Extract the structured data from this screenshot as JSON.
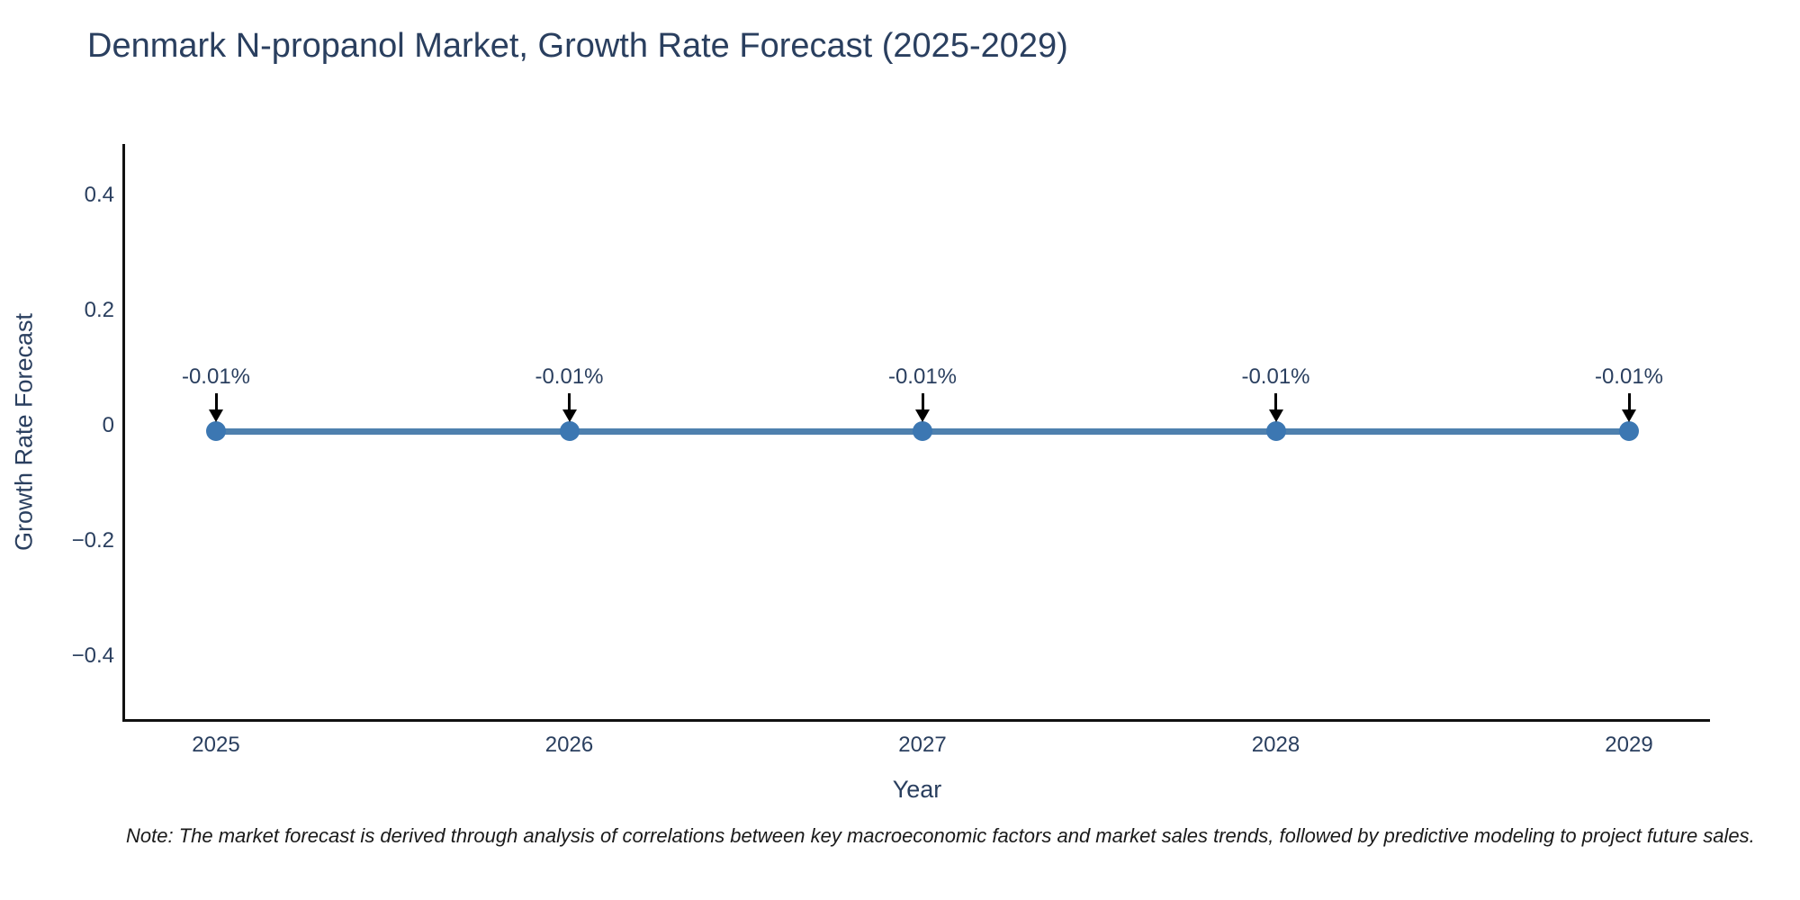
{
  "title": "Denmark N-propanol Market, Growth Rate Forecast (2025-2029)",
  "note": "Note: The market forecast is derived through analysis of correlations between key macroeconomic factors and market sales trends, followed by predictive modeling to project future sales.",
  "colors": {
    "line": "#4e80ae",
    "marker": "#3c77b2",
    "text": "#2a3f5f",
    "axis": "#111111",
    "arrow": "#000000"
  },
  "chart_data": {
    "type": "line",
    "title": "Denmark N-propanol Market, Growth Rate Forecast (2025-2029)",
    "xlabel": "Year",
    "ylabel": "Growth Rate Forecast",
    "categories": [
      "2025",
      "2026",
      "2027",
      "2028",
      "2029"
    ],
    "values": [
      -0.01,
      -0.01,
      -0.01,
      -0.01,
      -0.01
    ],
    "point_labels": [
      "-0.01%",
      "-0.01%",
      "-0.01%",
      "-0.01%",
      "-0.01%"
    ],
    "y_ticks": [
      "0.4",
      "0.2",
      "0",
      "−0.2",
      "−0.4"
    ],
    "y_tick_values": [
      0.4,
      0.2,
      0,
      -0.2,
      -0.4
    ],
    "ylim": [
      -0.5,
      0.5
    ],
    "grid": "off",
    "legend": "none",
    "marker_style": "circle",
    "annotation_arrow": "down"
  }
}
